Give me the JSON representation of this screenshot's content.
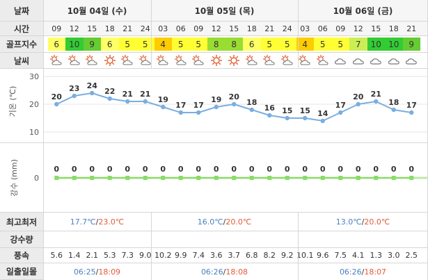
{
  "labels": {
    "date": "날짜",
    "time": "시간",
    "golf_index": "골프지수",
    "weather": "날씨",
    "max_min": "최고최저",
    "rain_amount": "강수량",
    "wind": "풍속",
    "sunrise_sunset": "일출일몰"
  },
  "dates": [
    "10월 04일 (수)",
    "10월 05일 (목)",
    "10월 06일 (금)"
  ],
  "times": [
    "09",
    "12",
    "15",
    "18",
    "21",
    "24",
    "03",
    "06",
    "09",
    "12",
    "15",
    "18",
    "21",
    "24",
    "03",
    "06",
    "09",
    "12",
    "15",
    "18",
    "21"
  ],
  "golf_index": [
    {
      "v": "6",
      "color": "#ffff66"
    },
    {
      "v": "10",
      "color": "#33cc33"
    },
    {
      "v": "9",
      "color": "#66cc33"
    },
    {
      "v": "6",
      "color": "#ffff66"
    },
    {
      "v": "5",
      "color": "#ffff33"
    },
    {
      "v": "5",
      "color": "#ffff33"
    },
    {
      "v": "4",
      "color": "#ffcc00"
    },
    {
      "v": "5",
      "color": "#ffff33"
    },
    {
      "v": "5",
      "color": "#ffff33"
    },
    {
      "v": "8",
      "color": "#99dd33"
    },
    {
      "v": "8",
      "color": "#99dd33"
    },
    {
      "v": "6",
      "color": "#ffff66"
    },
    {
      "v": "5",
      "color": "#ffff33"
    },
    {
      "v": "5",
      "color": "#ffff33"
    },
    {
      "v": "4",
      "color": "#ffcc00"
    },
    {
      "v": "5",
      "color": "#ffff33"
    },
    {
      "v": "5",
      "color": "#ffff33"
    },
    {
      "v": "7",
      "color": "#ccee55"
    },
    {
      "v": "10",
      "color": "#33cc33"
    },
    {
      "v": "10",
      "color": "#33cc33"
    },
    {
      "v": "9",
      "color": "#66cc33"
    }
  ],
  "weather_icons": [
    "partly-cloudy-icon",
    "partly-cloudy-icon",
    "partly-cloudy-icon",
    "sunny-icon",
    "partly-cloudy-icon",
    "partly-cloudy-icon",
    "partly-cloudy-icon",
    "partly-cloudy-icon",
    "partly-cloudy-icon",
    "sunny-icon",
    "sunny-icon",
    "partly-cloudy-icon",
    "partly-cloudy-icon",
    "partly-cloudy-icon",
    "partly-cloudy-icon",
    "partly-cloudy-icon",
    "cloudy-icon",
    "cloudy-icon",
    "cloudy-icon",
    "cloudy-icon",
    "cloudy-icon"
  ],
  "chart_data": [
    {
      "type": "line",
      "ylabel": "기온 (℃)",
      "yticks": [
        30,
        20,
        10
      ],
      "ylim": [
        10,
        30
      ],
      "x": [
        "09",
        "12",
        "15",
        "18",
        "21",
        "24",
        "03",
        "06",
        "09",
        "12",
        "15",
        "18",
        "21",
        "24",
        "03",
        "06",
        "09",
        "12",
        "15",
        "18",
        "21"
      ],
      "values": [
        20,
        23,
        24,
        22,
        21,
        21,
        19,
        17,
        17,
        19,
        20,
        18,
        16,
        15,
        15,
        14,
        17,
        20,
        21,
        18,
        17
      ],
      "color": "#7aaee0"
    },
    {
      "type": "line",
      "ylabel": "강수 (mm)",
      "yticks": [
        0
      ],
      "values": [
        0,
        0,
        0,
        0,
        0,
        0,
        0,
        0,
        0,
        0,
        0,
        0,
        0,
        0,
        0,
        0,
        0,
        0,
        0,
        0,
        0
      ],
      "color": "#88dd66"
    }
  ],
  "max_min": [
    {
      "min": "17.7℃",
      "sep": "/",
      "max": "23.0℃"
    },
    {
      "min": "16.0℃",
      "sep": "/",
      "max": "20.0℃"
    },
    {
      "min": "13.0℃",
      "sep": "/",
      "max": "20.0℃"
    }
  ],
  "wind": [
    "5.6",
    "1.4",
    "2.1",
    "5.3",
    "7.3",
    "9.0",
    "10.2",
    "9.9",
    "7.4",
    "3.6",
    "3.7",
    "6.8",
    "8.2",
    "9.2",
    "10.1",
    "9.6",
    "7.5",
    "4.1",
    "1.3",
    "3.0",
    "2.5"
  ],
  "sun": [
    {
      "rise": "06:25",
      "sep": "/",
      "set": "18:09"
    },
    {
      "rise": "06:26",
      "sep": "/",
      "set": "18:08"
    },
    {
      "rise": "06:26",
      "sep": "/",
      "set": "18:07"
    }
  ]
}
